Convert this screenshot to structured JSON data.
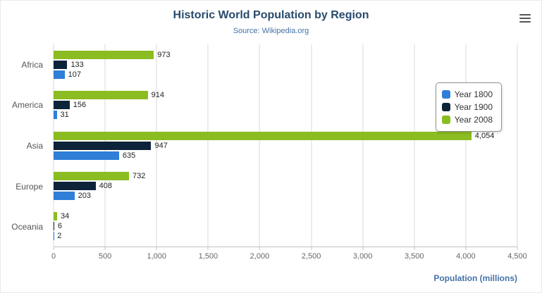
{
  "chart_data": {
    "type": "bar",
    "title": "Historic World Population by Region",
    "subtitle": "Source: Wikipedia.org",
    "categories": [
      "Africa",
      "America",
      "Asia",
      "Europe",
      "Oceania"
    ],
    "series": [
      {
        "name": "Year 1800",
        "color": "#2f7ed8",
        "values": [
          107,
          31,
          635,
          203,
          2
        ]
      },
      {
        "name": "Year 1900",
        "color": "#0d233a",
        "values": [
          133,
          156,
          947,
          408,
          6
        ]
      },
      {
        "name": "Year 2008",
        "color": "#8bbc21",
        "values": [
          973,
          914,
          4054,
          732,
          34
        ]
      }
    ],
    "bar_display_order_top_to_bottom": [
      "Year 2008",
      "Year 1900",
      "Year 1800"
    ],
    "xlabel": "Population (millions)",
    "xlim": [
      0,
      4500
    ],
    "xticks": [
      0,
      500,
      1000,
      1500,
      2000,
      2500,
      3000,
      3500,
      4000,
      4500
    ],
    "xtick_labels": [
      "0",
      "500",
      "1,000",
      "1,500",
      "2,000",
      "2,500",
      "3,000",
      "3,500",
      "4,000",
      "4,500"
    ],
    "grid": true,
    "legend_position": "right",
    "data_labels": true
  },
  "menu": {
    "icon": "hamburger-menu-icon"
  }
}
